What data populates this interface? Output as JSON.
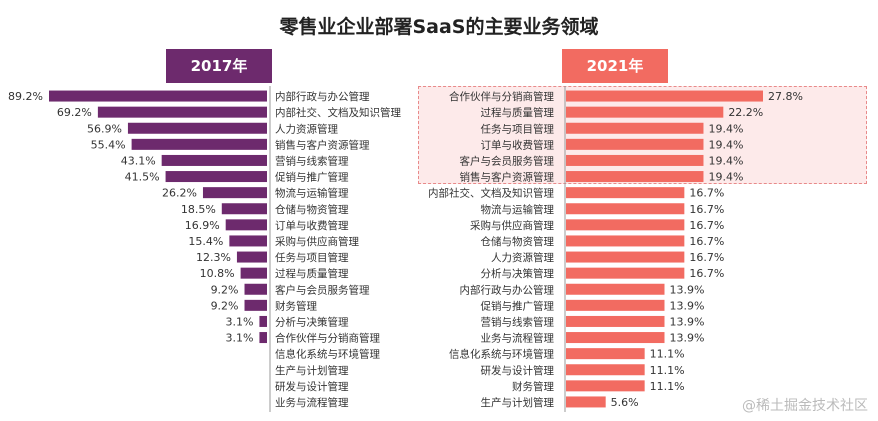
{
  "header": {
    "title": "零售业企业部署SaaS的主要业务领域"
  },
  "watermark": "@稀土掘金技术社区",
  "colors": {
    "left": "#6d2a6d",
    "right": "#f26b61",
    "highlight": "#fdeaea"
  },
  "chart_data": [
    {
      "type": "bar",
      "orientation": "horizontal",
      "year": "2017年",
      "title": "2017年",
      "xlabel": "",
      "ylabel": "",
      "xlim": [
        0,
        100
      ],
      "categories": [
        "内部行政与办公管理",
        "内部社交、文档及知识管理",
        "人力资源管理",
        "销售与客户资源管理",
        "营销与线索管理",
        "促销与推广管理",
        "物流与运输管理",
        "仓储与物资管理",
        "订单与收费管理",
        "采购与供应商管理",
        "任务与项目管理",
        "过程与质量管理",
        "客户与会员服务管理",
        "财务管理",
        "分析与决策管理",
        "合作伙伴与分销商管理",
        "信息化系统与环境管理",
        "生产与计划管理",
        "研发与设计管理",
        "业务与流程管理"
      ],
      "values": [
        89.2,
        69.2,
        56.9,
        55.4,
        43.1,
        41.5,
        26.2,
        18.5,
        16.9,
        15.4,
        12.3,
        10.8,
        9.2,
        9.2,
        3.1,
        3.1,
        null,
        null,
        null,
        null
      ],
      "labels": [
        "89.2%",
        "69.2%",
        "56.9%",
        "55.4%",
        "43.1%",
        "41.5%",
        "26.2%",
        "18.5%",
        "16.9%",
        "15.4%",
        "12.3%",
        "10.8%",
        "9.2%",
        "9.2%",
        "3.1%",
        "3.1%",
        "",
        "",
        "",
        ""
      ]
    },
    {
      "type": "bar",
      "orientation": "horizontal",
      "year": "2021年",
      "title": "2021年",
      "xlabel": "",
      "ylabel": "",
      "xlim": [
        0,
        30
      ],
      "highlighted_top": 6,
      "categories": [
        "合作伙伴与分销商管理",
        "过程与质量管理",
        "任务与项目管理",
        "订单与收费管理",
        "客户与会员服务管理",
        "销售与客户资源管理",
        "内部社交、文档及知识管理",
        "物流与运输管理",
        "采购与供应商管理",
        "仓储与物资管理",
        "人力资源管理",
        "分析与决策管理",
        "内部行政与办公管理",
        "促销与推广管理",
        "营销与线索管理",
        "业务与流程管理",
        "信息化系统与环境管理",
        "研发与设计管理",
        "财务管理",
        "生产与计划管理"
      ],
      "values": [
        27.8,
        22.2,
        19.4,
        19.4,
        19.4,
        19.4,
        16.7,
        16.7,
        16.7,
        16.7,
        16.7,
        16.7,
        13.9,
        13.9,
        13.9,
        13.9,
        11.1,
        11.1,
        11.1,
        5.6
      ],
      "labels": [
        "27.8%",
        "22.2%",
        "19.4%",
        "19.4%",
        "19.4%",
        "19.4%",
        "16.7%",
        "16.7%",
        "16.7%",
        "16.7%",
        "16.7%",
        "16.7%",
        "13.9%",
        "13.9%",
        "13.9%",
        "13.9%",
        "11.1%",
        "11.1%",
        "11.1%",
        "5.6%"
      ]
    }
  ]
}
